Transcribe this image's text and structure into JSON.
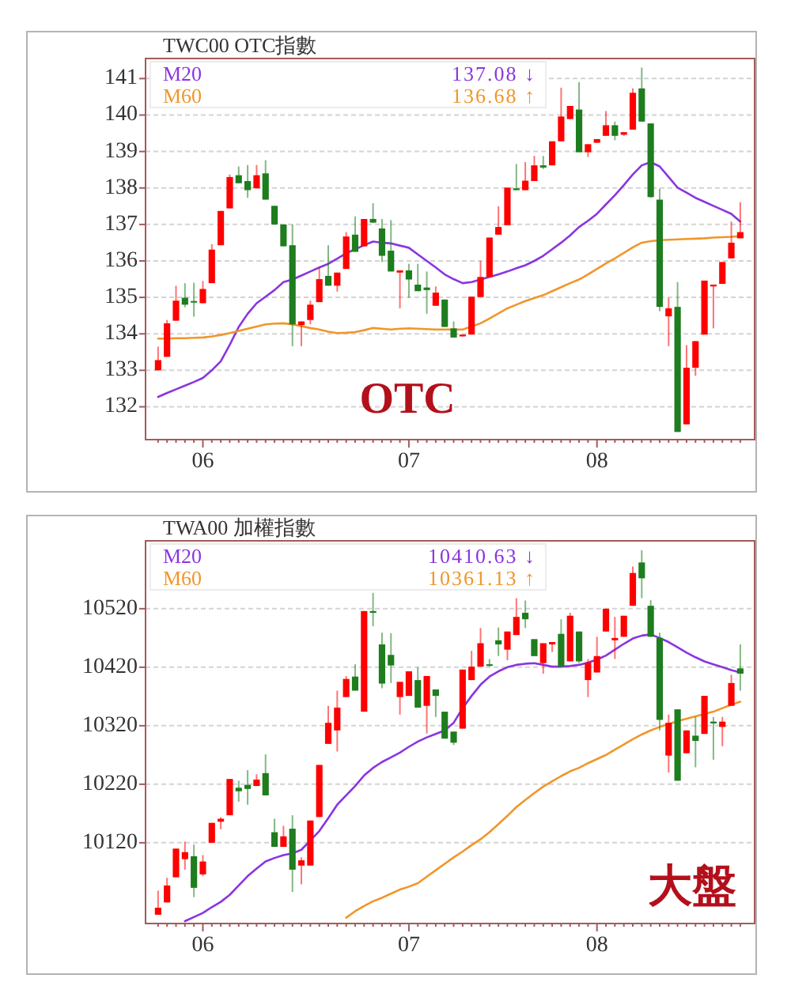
{
  "chart_data": [
    {
      "type": "candlestick",
      "title": "TWC00 OTC指數",
      "categories": [
        null,
        null,
        null,
        null,
        null,
        "06",
        null,
        null,
        null,
        null,
        null,
        null,
        null,
        null,
        null,
        null,
        null,
        null,
        null,
        null,
        null,
        null,
        null,
        null,
        null,
        null,
        null,
        null,
        "07",
        null,
        null,
        null,
        null,
        null,
        null,
        null,
        null,
        null,
        null,
        null,
        null,
        null,
        null,
        null,
        null,
        null,
        null,
        null,
        null,
        "08",
        null,
        null,
        null,
        null,
        null,
        null,
        null,
        null,
        null,
        null,
        null,
        null,
        null,
        null,
        null,
        null
      ],
      "ohlc": [
        [
          133.0,
          133.65,
          133.0,
          133.28
        ],
        [
          133.37,
          134.38,
          133.37,
          134.29
        ],
        [
          134.36,
          135.32,
          134.36,
          134.91
        ],
        [
          134.99,
          135.39,
          134.73,
          134.8
        ],
        [
          134.9,
          135.4,
          134.47,
          134.86
        ],
        [
          134.84,
          135.45,
          134.84,
          135.23
        ],
        [
          135.39,
          136.46,
          135.39,
          136.31
        ],
        [
          136.43,
          137.37,
          136.43,
          137.37
        ],
        [
          137.44,
          138.37,
          137.44,
          138.3
        ],
        [
          138.35,
          138.59,
          138.13,
          138.13
        ],
        [
          138.19,
          138.63,
          137.73,
          137.94
        ],
        [
          137.99,
          138.63,
          137.99,
          138.35
        ],
        [
          138.4,
          138.76,
          137.68,
          137.68
        ],
        [
          137.51,
          137.51,
          137.0,
          137.0
        ],
        [
          137.0,
          137.0,
          136.4,
          136.4
        ],
        [
          136.43,
          137.0,
          133.66,
          134.26
        ],
        [
          134.24,
          134.34,
          133.66,
          134.34
        ],
        [
          134.38,
          134.91,
          134.26,
          134.8
        ],
        [
          134.87,
          135.82,
          134.87,
          135.5
        ],
        [
          135.59,
          136.43,
          135.32,
          135.32
        ],
        [
          135.32,
          135.68,
          135.16,
          135.68
        ],
        [
          135.78,
          136.79,
          135.78,
          136.67
        ],
        [
          136.72,
          137.22,
          136.25,
          136.25
        ],
        [
          136.4,
          137.15,
          136.4,
          137.15
        ],
        [
          137.15,
          137.58,
          137.05,
          137.05
        ],
        [
          136.89,
          137.15,
          135.97,
          136.14
        ],
        [
          136.28,
          137.12,
          135.71,
          135.71
        ],
        [
          135.68,
          135.74,
          134.7,
          135.74
        ],
        [
          135.74,
          135.92,
          134.99,
          135.49
        ],
        [
          135.35,
          135.92,
          135.17,
          135.17
        ],
        [
          135.27,
          135.71,
          134.55,
          135.2
        ],
        [
          134.77,
          135.3,
          134.77,
          135.13
        ],
        [
          134.94,
          134.94,
          134.19,
          134.19
        ],
        [
          134.15,
          134.34,
          133.9,
          133.9
        ],
        [
          133.93,
          133.98,
          133.93,
          133.98
        ],
        [
          133.98,
          135.02,
          133.98,
          135.02
        ],
        [
          135.01,
          136.0,
          135.01,
          135.56
        ],
        [
          135.56,
          136.64,
          135.56,
          136.64
        ],
        [
          136.72,
          137.5,
          136.72,
          136.93
        ],
        [
          136.98,
          138.01,
          136.98,
          138.01
        ],
        [
          137.99,
          138.66,
          137.94,
          137.94
        ],
        [
          137.94,
          138.71,
          137.94,
          138.2
        ],
        [
          138.19,
          138.88,
          138.19,
          138.62
        ],
        [
          138.62,
          138.88,
          138.52,
          138.56
        ],
        [
          138.62,
          139.28,
          138.62,
          139.28
        ],
        [
          139.28,
          140.75,
          139.28,
          139.96
        ],
        [
          139.89,
          140.25,
          139.89,
          140.25
        ],
        [
          140.15,
          140.9,
          138.98,
          138.98
        ],
        [
          138.98,
          139.2,
          138.85,
          139.2
        ],
        [
          139.24,
          139.34,
          139.24,
          139.34
        ],
        [
          139.43,
          140.11,
          139.43,
          139.72
        ],
        [
          139.72,
          139.82,
          139.31,
          139.43
        ],
        [
          139.46,
          139.53,
          139.43,
          139.53
        ],
        [
          139.6,
          140.73,
          139.6,
          140.61
        ],
        [
          140.73,
          141.3,
          139.82,
          139.82
        ],
        [
          139.77,
          139.77,
          137.73,
          137.75
        ],
        [
          137.68,
          137.98,
          134.62,
          134.74
        ],
        [
          134.48,
          134.99,
          133.66,
          134.7
        ],
        [
          134.74,
          135.42,
          131.31,
          131.31
        ],
        [
          131.52,
          133.69,
          131.52,
          133.07
        ],
        [
          133.07,
          133.8,
          132.85,
          133.8
        ],
        [
          133.98,
          135.46,
          133.98,
          135.46
        ],
        [
          135.3,
          135.35,
          134.15,
          135.35
        ],
        [
          135.37,
          135.97,
          135.37,
          135.97
        ],
        [
          136.07,
          137.08,
          136.07,
          136.5
        ],
        [
          136.62,
          137.61,
          136.62,
          136.79
        ]
      ],
      "colors": [
        "#ff0000",
        "#ff0000",
        "#ff0000",
        "#1e7d1e",
        "#1e7d1e",
        "#ff0000",
        "#ff0000",
        "#ff0000",
        "#ff0000",
        "#1e7d1e",
        "#1e7d1e",
        "#ff0000",
        "#1e7d1e",
        "#1e7d1e",
        "#1e7d1e",
        "#1e7d1e",
        "#ff0000",
        "#ff0000",
        "#ff0000",
        "#1e7d1e",
        "#ff0000",
        "#ff0000",
        "#1e7d1e",
        "#ff0000",
        "#1e7d1e",
        "#1e7d1e",
        "#1e7d1e",
        "#ff0000",
        "#1e7d1e",
        "#1e7d1e",
        "#1e7d1e",
        "#ff0000",
        "#1e7d1e",
        "#1e7d1e",
        "#ff0000",
        "#ff0000",
        "#ff0000",
        "#ff0000",
        "#ff0000",
        "#ff0000",
        "#1e7d1e",
        "#ff0000",
        "#ff0000",
        "#1e7d1e",
        "#ff0000",
        "#ff0000",
        "#ff0000",
        "#1e7d1e",
        "#ff0000",
        "#ff0000",
        "#ff0000",
        "#1e7d1e",
        "#ff0000",
        "#ff0000",
        "#1e7d1e",
        "#1e7d1e",
        "#1e7d1e",
        "#ff0000",
        "#1e7d1e",
        "#ff0000",
        "#ff0000",
        "#ff0000",
        "#ff0000",
        "#ff0000",
        "#ff0000",
        "#ff0000"
      ],
      "series": [
        {
          "name": "M20",
          "type": "line",
          "color": "#8a35e0",
          "values": [
            132.27,
            132.38,
            132.48,
            132.58,
            132.68,
            132.79,
            133.0,
            133.25,
            133.7,
            134.19,
            134.55,
            134.84,
            135.02,
            135.2,
            135.42,
            135.49,
            135.6,
            135.71,
            135.82,
            135.92,
            136.06,
            136.21,
            136.32,
            136.43,
            136.53,
            136.5,
            136.48,
            136.42,
            136.36,
            136.18,
            136.0,
            135.82,
            135.63,
            135.5,
            135.39,
            135.42,
            135.49,
            135.56,
            135.63,
            135.71,
            135.8,
            135.88,
            136.0,
            136.14,
            136.32,
            136.5,
            136.7,
            136.93,
            137.1,
            137.29,
            137.55,
            137.8,
            138.08,
            138.37,
            138.62,
            138.71,
            138.59,
            138.3,
            138.01,
            137.87,
            137.73,
            137.62,
            137.51,
            137.4,
            137.29,
            137.08
          ]
        },
        {
          "name": "M60",
          "type": "line",
          "color": "#f0962a",
          "values": [
            133.87,
            133.87,
            133.88,
            133.88,
            133.89,
            133.9,
            133.93,
            133.97,
            134.02,
            134.08,
            134.14,
            134.2,
            134.26,
            134.28,
            134.29,
            134.26,
            134.21,
            134.16,
            134.12,
            134.06,
            134.02,
            134.03,
            134.05,
            134.1,
            134.16,
            134.14,
            134.12,
            134.14,
            134.15,
            134.14,
            134.13,
            134.12,
            134.12,
            134.12,
            134.12,
            134.2,
            134.29,
            134.42,
            134.56,
            134.7,
            134.8,
            134.9,
            134.98,
            135.06,
            135.17,
            135.28,
            135.39,
            135.49,
            135.63,
            135.78,
            135.93,
            136.07,
            136.22,
            136.37,
            136.5,
            136.54,
            136.57,
            136.58,
            136.59,
            136.6,
            136.61,
            136.62,
            136.64,
            136.65,
            136.66,
            136.68
          ]
        }
      ],
      "ylim": [
        131.1,
        141.55
      ],
      "yticks": [
        132,
        133,
        134,
        135,
        136,
        137,
        138,
        139,
        140,
        141
      ],
      "grid": "y",
      "legend": "top left",
      "annotations": [
        "137.08 ↓",
        "136.68 ↑",
        "OTC"
      ]
    },
    {
      "type": "candlestick",
      "title": "TWA00 加權指數",
      "categories": [
        null,
        null,
        null,
        null,
        null,
        "06",
        null,
        null,
        null,
        null,
        null,
        null,
        null,
        null,
        null,
        null,
        null,
        null,
        null,
        null,
        null,
        null,
        null,
        null,
        null,
        null,
        null,
        null,
        "07",
        null,
        null,
        null,
        null,
        null,
        null,
        null,
        null,
        null,
        null,
        null,
        null,
        null,
        null,
        null,
        null,
        null,
        null,
        null,
        null,
        "08",
        null,
        null,
        null,
        null,
        null,
        null,
        null,
        null,
        null,
        null,
        null,
        null,
        null,
        null,
        null,
        null
      ],
      "ohlc": [
        [
          9997,
          10038,
          9997,
          10009
        ],
        [
          10018,
          10060,
          10018,
          10047
        ],
        [
          10061,
          10110,
          10061,
          10110
        ],
        [
          10092,
          10122,
          10074,
          10104
        ],
        [
          10097,
          10117,
          10027,
          10043
        ],
        [
          10066,
          10099,
          10063,
          10088
        ],
        [
          10120,
          10154,
          10120,
          10154
        ],
        [
          10156,
          10164,
          10143,
          10161
        ],
        [
          10167,
          10229,
          10167,
          10229
        ],
        [
          10214,
          10226,
          10190,
          10208
        ],
        [
          10219,
          10244,
          10185,
          10212
        ],
        [
          10217,
          10237,
          10217,
          10228
        ],
        [
          10239,
          10271,
          10201,
          10201
        ],
        [
          10138,
          10161,
          10113,
          10113
        ],
        [
          10113,
          10149,
          10113,
          10131
        ],
        [
          10144,
          10167,
          10036,
          10074
        ],
        [
          10081,
          10095,
          10049,
          10090
        ],
        [
          10081,
          10158,
          10081,
          10158
        ],
        [
          10164,
          10253,
          10164,
          10253
        ],
        [
          10289,
          10354,
          10289,
          10325
        ],
        [
          10312,
          10380,
          10276,
          10351
        ],
        [
          10369,
          10405,
          10369,
          10400
        ],
        [
          10404,
          10425,
          10380,
          10380
        ],
        [
          10344,
          10516,
          10344,
          10516
        ],
        [
          10516,
          10547,
          10490,
          10513
        ],
        [
          10459,
          10479,
          10384,
          10392
        ],
        [
          10441,
          10478,
          10393,
          10423
        ],
        [
          10369,
          10395,
          10339,
          10395
        ],
        [
          10371,
          10413,
          10371,
          10413
        ],
        [
          10398,
          10420,
          10351,
          10351
        ],
        [
          10354,
          10405,
          10307,
          10405
        ],
        [
          10382,
          10382,
          10335,
          10371
        ],
        [
          10344,
          10344,
          10298,
          10298
        ],
        [
          10310,
          10310,
          10287,
          10291
        ],
        [
          10315,
          10416,
          10315,
          10416
        ],
        [
          10398,
          10448,
          10398,
          10421
        ],
        [
          10421,
          10487,
          10421,
          10461
        ],
        [
          10425,
          10434,
          10421,
          10423
        ],
        [
          10466,
          10488,
          10439,
          10459
        ],
        [
          10450,
          10481,
          10432,
          10481
        ],
        [
          10475,
          10538,
          10475,
          10506
        ],
        [
          10513,
          10534,
          10487,
          10502
        ],
        [
          10468,
          10468,
          10439,
          10439
        ],
        [
          10427,
          10461,
          10409,
          10461
        ],
        [
          10459,
          10463,
          10446,
          10463
        ],
        [
          10477,
          10502,
          10421,
          10421
        ],
        [
          10430,
          10513,
          10430,
          10508
        ],
        [
          10481,
          10481,
          10427,
          10430
        ],
        [
          10398,
          10434,
          10369,
          10428
        ],
        [
          10411,
          10472,
          10411,
          10439
        ],
        [
          10481,
          10520,
          10481,
          10520
        ],
        [
          10466,
          10506,
          10434,
          10470
        ],
        [
          10472,
          10508,
          10472,
          10508
        ],
        [
          10525,
          10592,
          10525,
          10581
        ],
        [
          10599,
          10620,
          10538,
          10572
        ],
        [
          10525,
          10535,
          10472,
          10472
        ],
        [
          10470,
          10479,
          10312,
          10330
        ],
        [
          10269,
          10339,
          10240,
          10325
        ],
        [
          10348,
          10348,
          10226,
          10226
        ],
        [
          10273,
          10312,
          10273,
          10312
        ],
        [
          10303,
          10335,
          10249,
          10294
        ],
        [
          10306,
          10371,
          10306,
          10371
        ],
        [
          10327,
          10335,
          10262,
          10324
        ],
        [
          10318,
          10335,
          10285,
          10327
        ],
        [
          10354,
          10407,
          10354,
          10393
        ],
        [
          10418,
          10459,
          10380,
          10409
        ]
      ],
      "colors": [
        "#ff0000",
        "#ff0000",
        "#ff0000",
        "#ff0000",
        "#1e7d1e",
        "#ff0000",
        "#ff0000",
        "#ff0000",
        "#ff0000",
        "#1e7d1e",
        "#1e7d1e",
        "#ff0000",
        "#1e7d1e",
        "#1e7d1e",
        "#ff0000",
        "#1e7d1e",
        "#ff0000",
        "#ff0000",
        "#ff0000",
        "#ff0000",
        "#ff0000",
        "#ff0000",
        "#1e7d1e",
        "#ff0000",
        "#1e7d1e",
        "#1e7d1e",
        "#1e7d1e",
        "#ff0000",
        "#ff0000",
        "#1e7d1e",
        "#ff0000",
        "#1e7d1e",
        "#1e7d1e",
        "#1e7d1e",
        "#ff0000",
        "#ff0000",
        "#ff0000",
        "#1e7d1e",
        "#1e7d1e",
        "#ff0000",
        "#ff0000",
        "#1e7d1e",
        "#1e7d1e",
        "#ff0000",
        "#ff0000",
        "#1e7d1e",
        "#ff0000",
        "#1e7d1e",
        "#ff0000",
        "#ff0000",
        "#ff0000",
        "#ff0000",
        "#ff0000",
        "#ff0000",
        "#1e7d1e",
        "#1e7d1e",
        "#1e7d1e",
        "#ff0000",
        "#1e7d1e",
        "#ff0000",
        "#1e7d1e",
        "#ff0000",
        "#1e7d1e",
        "#ff0000",
        "#ff0000",
        "#1e7d1e"
      ],
      "series": [
        {
          "name": "M20",
          "type": "line",
          "color": "#8a35e0",
          "values": [
            null,
            null,
            null,
            9986,
            9993,
            10000,
            10010,
            10019,
            10031,
            10047,
            10063,
            10076,
            10088,
            10094,
            10099,
            10102,
            10108,
            10124,
            10140,
            10162,
            10185,
            10201,
            10217,
            10235,
            10248,
            10258,
            10266,
            10274,
            10284,
            10293,
            10300,
            10306,
            10312,
            10325,
            10350,
            10371,
            10390,
            10404,
            10413,
            10420,
            10424,
            10426,
            10427,
            10424,
            10421,
            10421,
            10422,
            10424,
            10428,
            10433,
            10440,
            10450,
            10460,
            10469,
            10474,
            10476,
            10470,
            10463,
            10454,
            10445,
            10437,
            10430,
            10425,
            10420,
            10415,
            10411
          ]
        },
        {
          "name": "M60",
          "type": "line",
          "color": "#f0962a",
          "values": [
            null,
            null,
            null,
            null,
            null,
            null,
            null,
            null,
            null,
            null,
            null,
            null,
            null,
            null,
            null,
            null,
            null,
            null,
            null,
            null,
            null,
            9992,
            10003,
            10012,
            10020,
            10026,
            10033,
            10040,
            10045,
            10051,
            10062,
            10073,
            10084,
            10095,
            10105,
            10116,
            10126,
            10138,
            10152,
            10166,
            10181,
            10193,
            10205,
            10216,
            10225,
            10234,
            10242,
            10248,
            10256,
            10263,
            10270,
            10279,
            10288,
            10297,
            10305,
            10312,
            10318,
            10323,
            10328,
            10332,
            10336,
            10340,
            10344,
            10350,
            10356,
            10361
          ]
        }
      ],
      "ylim": [
        9982,
        10636
      ],
      "yticks": [
        10120,
        10220,
        10320,
        10420,
        10520
      ],
      "grid": "y",
      "legend": "top left",
      "annotations": [
        "10410.63 ↓",
        "10361.13 ↑",
        "大盤"
      ]
    }
  ]
}
